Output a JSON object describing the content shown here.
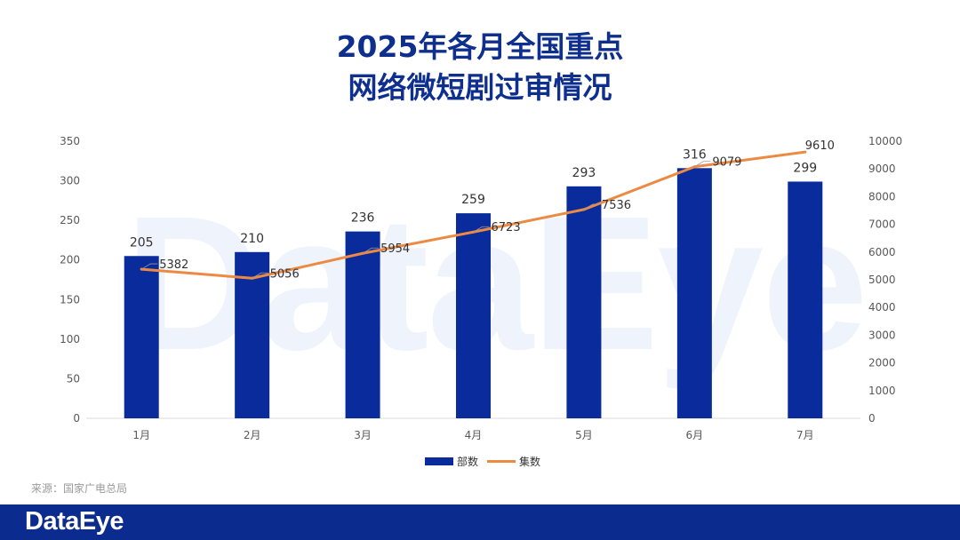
{
  "title_line1": "2025年各月全国重点",
  "title_line2": "网络微短剧过审情况",
  "watermark": "DataEye",
  "source": "来源：国家广电总局",
  "footer_logo": "DataEye",
  "colors": {
    "bar": "#0a2b9b",
    "line": "#ec8a43",
    "title": "#0f2f8f",
    "footer": "#0b2b8f"
  },
  "chart_data": {
    "type": "bar",
    "categories": [
      "1月",
      "2月",
      "3月",
      "4月",
      "5月",
      "6月",
      "7月"
    ],
    "series": [
      {
        "name": "部数",
        "type": "bar",
        "axis": "left",
        "values": [
          205,
          210,
          236,
          259,
          293,
          316,
          299
        ]
      },
      {
        "name": "集数",
        "type": "line",
        "axis": "right",
        "values": [
          5382,
          5056,
          5954,
          6723,
          7536,
          9079,
          9610
        ]
      }
    ],
    "y_left": {
      "min": 0,
      "max": 350,
      "ticks": [
        0,
        50,
        100,
        150,
        200,
        250,
        300,
        350
      ]
    },
    "y_right": {
      "min": 0,
      "max": 10000,
      "ticks": [
        0,
        1000,
        2000,
        3000,
        4000,
        5000,
        6000,
        7000,
        8000,
        9000,
        10000
      ]
    },
    "legend": "bottom-center",
    "grid": false
  }
}
